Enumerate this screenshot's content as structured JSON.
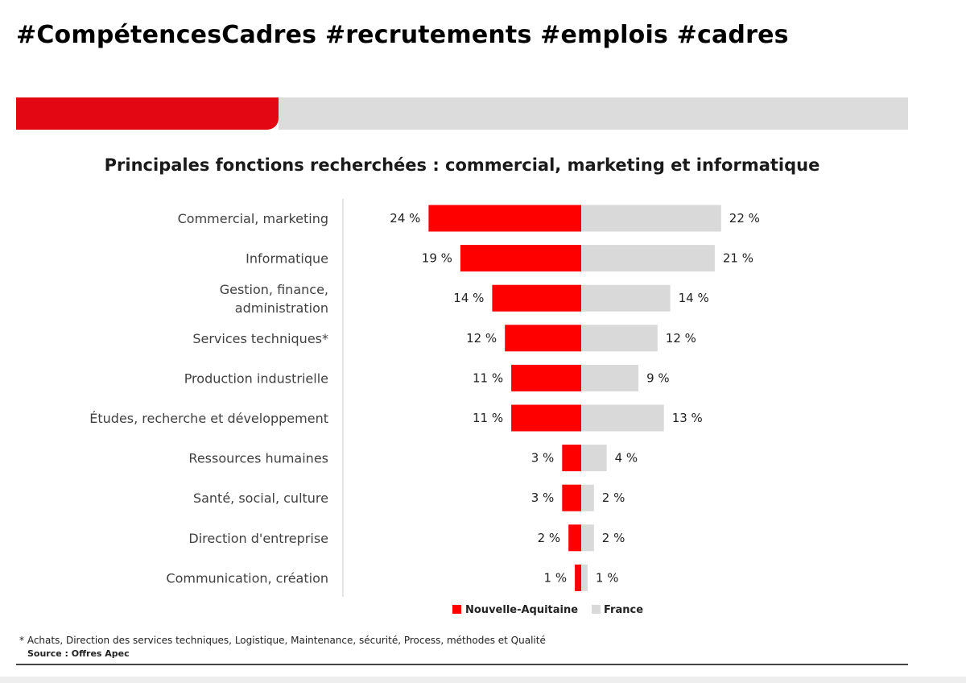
{
  "header": {
    "hashtags": "#CompétencesCadres #recrutements #emplois #cadres"
  },
  "slide": {
    "banner_colors": {
      "accent": "#e30613",
      "neutral": "#dcdcdc"
    },
    "footnote": "* Achats, Direction des services techniques, Logistique, Maintenance, sécurité, Process, méthodes et Qualité",
    "source": "Source : Offres Apec"
  },
  "chart_data": {
    "type": "bar",
    "orientation": "horizontal-diverging",
    "title": "Principales fonctions recherchées : commercial, marketing et informatique",
    "categories": [
      [
        "Commercial, marketing"
      ],
      [
        "Informatique"
      ],
      [
        "Gestion, finance,",
        "administration"
      ],
      [
        "Services techniques*"
      ],
      [
        "Production industrielle"
      ],
      [
        "Études, recherche et développement"
      ],
      [
        "Ressources humaines"
      ],
      [
        "Santé, social, culture"
      ],
      [
        "Direction d'entreprise"
      ],
      [
        "Communication, création"
      ]
    ],
    "series": [
      {
        "name": "Nouvelle-Aquitaine",
        "color": "#ff0000",
        "values": [
          24,
          19,
          14,
          12,
          11,
          11,
          3,
          3,
          2,
          1
        ]
      },
      {
        "name": "France",
        "color": "#d9d9d9",
        "values": [
          22,
          21,
          14,
          12,
          9,
          13,
          4,
          2,
          2,
          1
        ]
      }
    ],
    "value_suffix": " %",
    "legend_position": "bottom-center",
    "grid": false
  }
}
